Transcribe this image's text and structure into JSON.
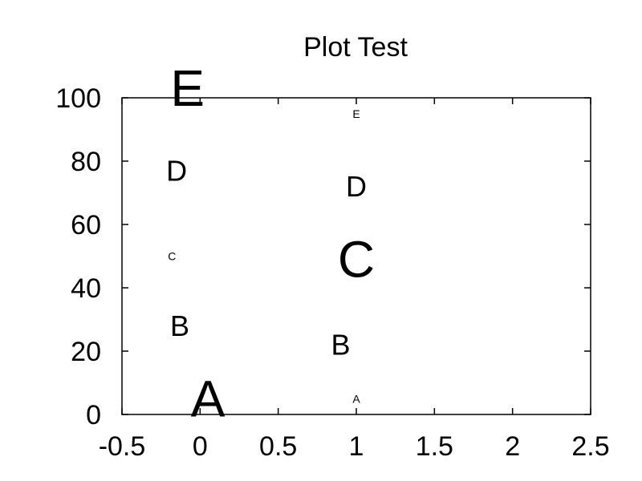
{
  "chart_data": {
    "type": "scatter",
    "title": "Plot Test",
    "xlabel": "",
    "ylabel": "",
    "xlim": [
      -0.5,
      2.5
    ],
    "ylim": [
      0,
      100
    ],
    "grid": false,
    "x_ticks": [
      "-0.5",
      "0",
      "0.5",
      "1",
      "1.5",
      "2",
      "2.5"
    ],
    "y_ticks": [
      "0",
      "20",
      "40",
      "60",
      "80",
      "100"
    ],
    "series": [
      {
        "points": [
          {
            "x": 0.05,
            "y": 5,
            "label": "A",
            "size": "large"
          },
          {
            "x": -0.13,
            "y": 28,
            "label": "B",
            "size": "medium"
          },
          {
            "x": -0.18,
            "y": 50,
            "label": "C",
            "size": "small"
          },
          {
            "x": -0.15,
            "y": 77,
            "label": "D",
            "size": "medium"
          },
          {
            "x": -0.08,
            "y": 103,
            "label": "E",
            "size": "large"
          }
        ]
      },
      {
        "points": [
          {
            "x": 1.0,
            "y": 5,
            "label": "A",
            "size": "small"
          },
          {
            "x": 0.9,
            "y": 22,
            "label": "B",
            "size": "medium"
          },
          {
            "x": 1.0,
            "y": 49,
            "label": "C",
            "size": "large"
          },
          {
            "x": 1.0,
            "y": 72,
            "label": "D",
            "size": "medium"
          },
          {
            "x": 1.0,
            "y": 95,
            "label": "E",
            "size": "small"
          }
        ]
      }
    ]
  }
}
